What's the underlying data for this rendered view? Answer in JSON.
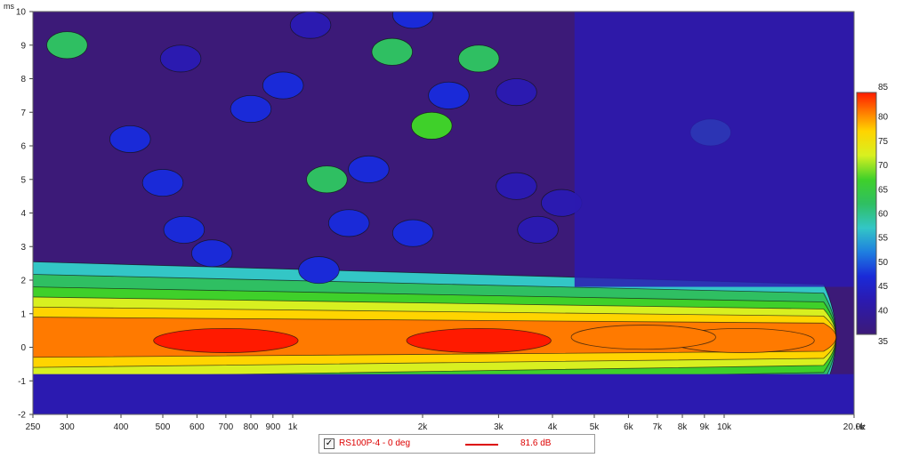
{
  "chart_data": {
    "type": "heatmap",
    "title": "",
    "x": {
      "unit_label": "Hz",
      "scale": "log",
      "range": [
        250,
        20000
      ],
      "ticks": [
        {
          "value": 250,
          "label": "250"
        },
        {
          "value": 300,
          "label": "300"
        },
        {
          "value": 400,
          "label": "400"
        },
        {
          "value": 500,
          "label": "500"
        },
        {
          "value": 600,
          "label": "600"
        },
        {
          "value": 700,
          "label": "700"
        },
        {
          "value": 800,
          "label": "800"
        },
        {
          "value": 900,
          "label": "900"
        },
        {
          "value": 1000,
          "label": "1k"
        },
        {
          "value": 2000,
          "label": "2k"
        },
        {
          "value": 3000,
          "label": "3k"
        },
        {
          "value": 4000,
          "label": "4k"
        },
        {
          "value": 5000,
          "label": "5k"
        },
        {
          "value": 6000,
          "label": "6k"
        },
        {
          "value": 7000,
          "label": "7k"
        },
        {
          "value": 8000,
          "label": "8k"
        },
        {
          "value": 9000,
          "label": "9k"
        },
        {
          "value": 10000,
          "label": "10k"
        },
        {
          "value": 20000,
          "label": "20.0k"
        }
      ]
    },
    "y": {
      "unit_label": "ms",
      "range": [
        -2,
        10
      ],
      "ticks": [
        -2,
        -1,
        0,
        1,
        2,
        3,
        4,
        5,
        6,
        7,
        8,
        9,
        10
      ]
    },
    "colorbar": {
      "range": [
        35,
        85
      ],
      "ticks": [
        35,
        40,
        45,
        50,
        55,
        60,
        65,
        70,
        75,
        80,
        85
      ],
      "stops": [
        {
          "value": 35,
          "color": "#3c1a78"
        },
        {
          "value": 42,
          "color": "#2b1ab0"
        },
        {
          "value": 47,
          "color": "#1a2ad8"
        },
        {
          "value": 52,
          "color": "#1e7ee0"
        },
        {
          "value": 57,
          "color": "#33c6c6"
        },
        {
          "value": 62,
          "color": "#2fbf62"
        },
        {
          "value": 67,
          "color": "#3fd02a"
        },
        {
          "value": 72,
          "color": "#d8f020"
        },
        {
          "value": 77,
          "color": "#ffd400"
        },
        {
          "value": 81,
          "color": "#ff7a00"
        },
        {
          "value": 85,
          "color": "#ff1a00"
        }
      ]
    },
    "features": [
      {
        "kind": "ridge",
        "f_from": 250,
        "f_to": 17000,
        "t_center": 0.3,
        "t_halfwidth": 0.75,
        "peak_db": 81
      },
      {
        "kind": "blob",
        "f": 2700,
        "t": 0.2,
        "db": 83
      },
      {
        "kind": "blob",
        "f": 700,
        "t": 0.2,
        "db": 82
      },
      {
        "kind": "blob",
        "f": 11000,
        "t": 0.2,
        "db": 79
      },
      {
        "kind": "blob",
        "f": 6500,
        "t": 0.3,
        "db": 79
      },
      {
        "kind": "blob",
        "f": 2100,
        "t": 6.6,
        "db": 64
      },
      {
        "kind": "blob",
        "f": 1200,
        "t": 5.0,
        "db": 60
      },
      {
        "kind": "blob",
        "f": 300,
        "t": 9.0,
        "db": 60
      },
      {
        "kind": "blob",
        "f": 1700,
        "t": 8.8,
        "db": 60
      },
      {
        "kind": "blob",
        "f": 2700,
        "t": 8.6,
        "db": 61
      },
      {
        "kind": "blob",
        "f": 550,
        "t": 8.6,
        "db": 42
      },
      {
        "kind": "blob",
        "f": 420,
        "t": 6.2,
        "db": 43
      },
      {
        "kind": "blob",
        "f": 500,
        "t": 4.9,
        "db": 43
      },
      {
        "kind": "blob",
        "f": 800,
        "t": 7.1,
        "db": 44
      },
      {
        "kind": "blob",
        "f": 950,
        "t": 7.8,
        "db": 44
      },
      {
        "kind": "blob",
        "f": 1900,
        "t": 3.4,
        "db": 43
      },
      {
        "kind": "blob",
        "f": 560,
        "t": 3.5,
        "db": 45
      },
      {
        "kind": "blob",
        "f": 650,
        "t": 2.8,
        "db": 44
      },
      {
        "kind": "blob",
        "f": 1350,
        "t": 3.7,
        "db": 46
      },
      {
        "kind": "blob",
        "f": 1500,
        "t": 5.3,
        "db": 46
      },
      {
        "kind": "blob",
        "f": 1100,
        "t": 9.6,
        "db": 42
      },
      {
        "kind": "blob",
        "f": 1900,
        "t": 9.9,
        "db": 44
      },
      {
        "kind": "blob",
        "f": 2300,
        "t": 7.5,
        "db": 43
      },
      {
        "kind": "blob",
        "f": 3300,
        "t": 7.6,
        "db": 42
      },
      {
        "kind": "blob",
        "f": 1150,
        "t": 2.3,
        "db": 45
      },
      {
        "kind": "blob",
        "f": 3300,
        "t": 4.8,
        "db": 40
      },
      {
        "kind": "blob",
        "f": 3700,
        "t": 3.5,
        "db": 40
      },
      {
        "kind": "blob",
        "f": 4200,
        "t": 4.3,
        "db": 40
      },
      {
        "kind": "blob",
        "f": 9300,
        "t": 6.4,
        "db": 57
      },
      {
        "kind": "region",
        "f_from": 4500,
        "f_to": 20000,
        "t_from": 1.8,
        "t_to": 10,
        "db": 38
      },
      {
        "kind": "floor",
        "t_to": -0.8,
        "db": 37
      }
    ]
  },
  "legend": {
    "checked_mark": "✓",
    "series_name": "RS100P-4 - 0 deg",
    "series_color": "#dd0000",
    "series_value": "81.6 dB"
  }
}
